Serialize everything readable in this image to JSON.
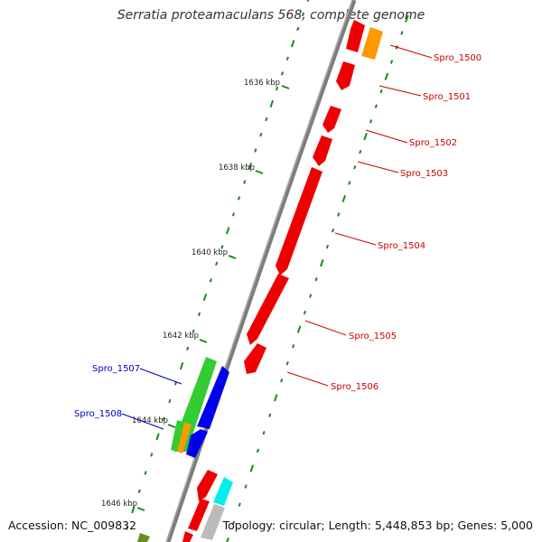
{
  "header": {
    "title": "Serratia proteamaculans 568, complete genome"
  },
  "footer": {
    "accession": "Accession: NC_009832",
    "summary": "Topology: circular; Length: 5,448,853 bp; Genes: 5,000"
  },
  "colors": {
    "backbone": "#8a8a8a",
    "tick": "#1a8a1a",
    "forward_label": "#cc0000",
    "reverse_label": "#0000bb",
    "gene_red": "#ee0000",
    "gene_orange": "#ff9900",
    "gene_green": "#33cc33",
    "gene_blue": "#0000ee",
    "gene_cyan": "#00eeee",
    "gene_gray": "#bbbbbb",
    "gene_olive": "#6b8e23"
  },
  "scale_labels": [
    "1636 kbp",
    "1638 kbp",
    "1640 kbp",
    "1642 kbp",
    "1644 kbp",
    "1646 kbp"
  ],
  "genes": [
    {
      "name": "Spro_1500"
    },
    {
      "name": "Spro_1501"
    },
    {
      "name": "Spro_1502"
    },
    {
      "name": "Spro_1503"
    },
    {
      "name": "Spro_1504"
    },
    {
      "name": "Spro_1505"
    },
    {
      "name": "Spro_1506"
    },
    {
      "name": "Spro_1507"
    },
    {
      "name": "Spro_1508"
    }
  ]
}
